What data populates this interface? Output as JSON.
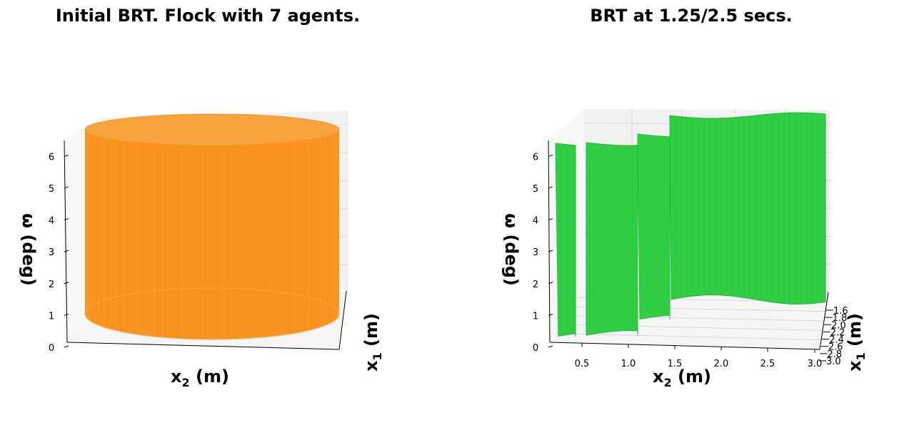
{
  "chart_data": [
    {
      "type": "surface3d",
      "title": "Initial BRT. Flock with 7 agents.",
      "xlabel": "x$_2$ (m)",
      "ylabel": "x$_1$ (m)",
      "zlabel": "ω (deg)",
      "xlabel_main": "x",
      "xlabel_sub": "2",
      "xlabel_unit": " (m)",
      "ylabel_main": "x",
      "ylabel_sub": "1",
      "ylabel_unit": " (m)",
      "zlabel_text": "ω (deg)",
      "z_ticks": [
        "0",
        "1",
        "2",
        "3",
        "4",
        "5",
        "6"
      ],
      "x_ticks": [],
      "y_ticks": [],
      "surface_color": "#f7931e",
      "shape": "cylinder"
    },
    {
      "type": "surface3d",
      "title": "BRT at 1.25/2.5 secs.",
      "xlabel": "x$_2$ (m)",
      "ylabel": "x$_1$ (m)",
      "zlabel": "ω (deg)",
      "xlabel_main": "x",
      "xlabel_sub": "2",
      "xlabel_unit": " (m)",
      "ylabel_main": "x",
      "ylabel_sub": "1",
      "ylabel_unit": " (m)",
      "zlabel_text": "ω (deg)",
      "z_ticks": [
        "0",
        "1",
        "2",
        "3",
        "4",
        "5",
        "6"
      ],
      "x_ticks": [
        "0.5",
        "1.0",
        "1.5",
        "2.0",
        "2.5",
        "3.0"
      ],
      "y_ticks": [
        "1.6",
        "1.8",
        "2.0",
        "2.2",
        "2.4",
        "2.6",
        "2.8",
        "3.0"
      ],
      "surface_color": "#2ecc40",
      "shape": "walls"
    }
  ]
}
